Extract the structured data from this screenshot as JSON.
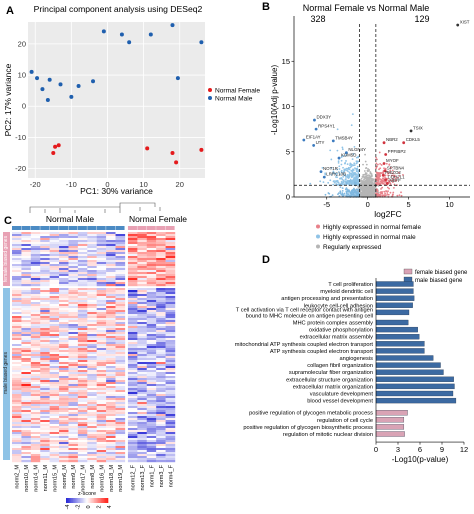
{
  "panels": {
    "A": {
      "label": "A"
    },
    "B": {
      "label": "B"
    },
    "C": {
      "label": "C"
    },
    "D": {
      "label": "D"
    }
  },
  "chart_data": [
    {
      "panel": "A",
      "type": "scatter",
      "title": "Principal component analysis using DESeq2",
      "xlabel": "PC1: 30% variance",
      "ylabel": "PC2: 17% variance",
      "xlim": [
        -22,
        27
      ],
      "ylim": [
        -23,
        27
      ],
      "xticks": [
        -20,
        -10,
        0,
        10,
        20
      ],
      "yticks": [
        -20,
        -10,
        0,
        10,
        20
      ],
      "grid": true,
      "legend_position": "right",
      "series": [
        {
          "name": "Normal Female",
          "color": "#e41a1c",
          "points": [
            [
              -15,
              -15
            ],
            [
              -14.5,
              -13
            ],
            [
              -13.5,
              -12.5
            ],
            [
              11,
              -13.5
            ],
            [
              18,
              -15
            ],
            [
              19,
              -18
            ],
            [
              26,
              -14
            ]
          ]
        },
        {
          "name": "Normal Male",
          "color": "#1f5fae",
          "points": [
            [
              -21,
              11
            ],
            [
              -19.5,
              9
            ],
            [
              -18,
              5.5
            ],
            [
              -16,
              8.5
            ],
            [
              -13,
              7
            ],
            [
              -10,
              3
            ],
            [
              -8,
              6.5
            ],
            [
              -4,
              8
            ],
            [
              -1,
              24
            ],
            [
              4,
              23
            ],
            [
              6,
              20.5
            ],
            [
              12,
              23
            ],
            [
              18,
              26
            ],
            [
              19.5,
              9
            ],
            [
              26,
              20.5
            ],
            [
              -16.5,
              2
            ]
          ]
        }
      ]
    },
    {
      "panel": "B",
      "type": "scatter",
      "title": "Normal Female vs Normal Male",
      "counts": {
        "left": "328",
        "right": "129"
      },
      "xlabel": "log2FC",
      "ylabel": "-Log10(Adj p-value)",
      "xlim": [
        -9,
        12.5
      ],
      "ylim": [
        0,
        20
      ],
      "xticks": [
        -5,
        0,
        5,
        10
      ],
      "yticks": [
        0,
        5,
        10,
        15
      ],
      "thresholds": {
        "x": [
          -1,
          1
        ],
        "y": 1.3
      },
      "legend": [
        "Highly expressed in normal female",
        "Highly expressed in normal male",
        "Regularly expressed"
      ],
      "legend_colors": [
        "#e8818a",
        "#8fc3e6",
        "#b5b5b5"
      ],
      "labeled_genes": [
        {
          "label": "XIST",
          "x": 11,
          "y": 19
        },
        {
          "label": "TSIX",
          "x": 5.3,
          "y": 7.3
        },
        {
          "label": "DDX3Y",
          "x": -6.5,
          "y": 8.5
        },
        {
          "label": "RPS4Y1",
          "x": -6.3,
          "y": 7.5
        },
        {
          "label": "EIF1AY",
          "x": -7.8,
          "y": 6.3
        },
        {
          "label": "TMSB4Y",
          "x": -4.2,
          "y": 6.2
        },
        {
          "label": "UTY",
          "x": -6.6,
          "y": 5.7
        },
        {
          "label": "KDM5D",
          "x": -3.5,
          "y": 4.3
        },
        {
          "label": "NLGN4Y",
          "x": -2.6,
          "y": 4.9
        },
        {
          "label": "CDKL5",
          "x": 4.4,
          "y": 6.0
        },
        {
          "label": "NBR2",
          "x": 2.0,
          "y": 6.0
        },
        {
          "label": "PPFIBP2",
          "x": 2.2,
          "y": 4.7
        },
        {
          "label": "MYOF",
          "x": 2.0,
          "y": 3.7
        },
        {
          "label": "SPTBN4",
          "x": 2.1,
          "y": 2.9
        },
        {
          "label": "PIEZO2",
          "x": 1.9,
          "y": 2.4
        },
        {
          "label": "CDH2L1",
          "x": 2.2,
          "y": 1.9
        },
        {
          "label": "NEFF",
          "x": 2.4,
          "y": 1.5
        },
        {
          "label": "NOT1R",
          "x": -5.7,
          "y": 2.8
        },
        {
          "label": "LRRC10B",
          "x": -5.3,
          "y": 2.2
        }
      ]
    },
    {
      "panel": "C",
      "type": "heatmap",
      "groups": [
        "Normal Male",
        "Normal Female"
      ],
      "row_groups": [
        "female biased genes",
        "male biased genes"
      ],
      "columns": [
        "norm2_M",
        "norm10_M",
        "norm14_M",
        "norm11_M",
        "norm15_M",
        "norm6_M",
        "norm9_M",
        "norm17_M",
        "norm8_M",
        "norm16_M",
        "norm18_M",
        "norm19_M",
        "norm12_F",
        "norm13_F",
        "norm1_F",
        "norm3_F",
        "norm4_F"
      ],
      "colorbar": {
        "title": "z-score",
        "ticks": [
          "-4",
          "-2",
          "0",
          "2",
          "4"
        ],
        "colors": [
          "#2b2bd6",
          "#ffffff",
          "#e3231b"
        ]
      }
    },
    {
      "panel": "D",
      "type": "bar",
      "orientation": "horizontal",
      "xlabel": "-Log10(p-value)",
      "xlim": [
        0,
        12
      ],
      "xticks": [
        0,
        3,
        6,
        9,
        12
      ],
      "legend": [
        "female biased gene",
        "male biased gene"
      ],
      "legend_colors": [
        "#d9a3b5",
        "#3c6aa2"
      ],
      "categories": [
        "T cell proliferation",
        "myeloid dendritic cell",
        "antigen processing and presentation",
        "leukocyte cell-cell adhesion",
        "T cell activation via T cell receptor contact with antigen bound to MHC molecule on antigen presenting cell",
        "MHC protein complex assembly",
        "oxidative phosphorylation",
        "extracellular matrix assembly",
        "mitochondrial ATP synthesis coupled electron transport",
        "ATP synthesis coupled electron transport",
        "angiogenesis",
        "collagen fibril organization",
        "supramolecular fiber organization",
        "extracellular structure organization",
        "extracellular matrix organization",
        "vasculature development",
        "blood vessel development",
        "positive regulation of glycogen metabolic process",
        "regulation of cell cycle",
        "positive regulation of glycogen biosynthetic process",
        "regulation of mitotic nuclear division"
      ],
      "display_labels": [
        [
          "T cell proliferation"
        ],
        [
          "myeloid dendritic cell"
        ],
        [
          "antigen processing and presentation"
        ],
        [
          "leukocyte cell-cell adhesion"
        ],
        [
          "T cell activation via T cell receptor contact with antigen",
          "bound to MHC molecule on antigen presenting cell"
        ],
        [
          "MHC protein complex assembly"
        ],
        [
          "oxidative phosphorylation"
        ],
        [
          "extracellular matrix assembly"
        ],
        [
          "mitochondrial ATP synthesis coupled electron transport"
        ],
        [
          "ATP synthesis coupled electron transport"
        ],
        [
          "angiogenesis"
        ],
        [
          "collagen fibril organization"
        ],
        [
          "supramolecular fiber organization"
        ],
        [
          "extracellular structure organization"
        ],
        [
          "extracellular matrix organization"
        ],
        [
          "vasculature development"
        ],
        [
          "blood vessel development"
        ],
        [
          "positive regulation of glycogen metabolic process"
        ],
        [
          "regulation of cell cycle"
        ],
        [
          "positive regulation of glycogen biosynthetic process"
        ],
        [
          "regulation of mitotic nuclear division"
        ]
      ],
      "values": [
        5.1,
        5.1,
        5.2,
        5.0,
        4.5,
        4.4,
        5.7,
        5.9,
        6.6,
        6.6,
        7.8,
        8.8,
        9.2,
        10.6,
        10.7,
        10.5,
        10.9,
        4.3,
        3.8,
        3.8,
        3.9
      ],
      "series_of_bar": [
        "male",
        "male",
        "male",
        "male",
        "male",
        "male",
        "male",
        "male",
        "male",
        "male",
        "male",
        "male",
        "male",
        "male",
        "male",
        "male",
        "male",
        "female",
        "female",
        "female",
        "female"
      ]
    }
  ]
}
